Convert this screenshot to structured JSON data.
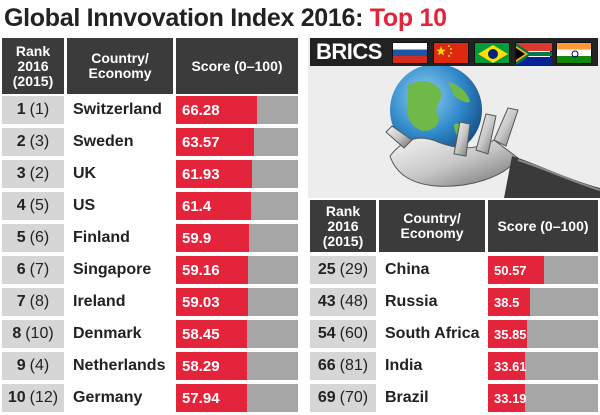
{
  "title": {
    "main": "Global Innvovation Index 2016: ",
    "accent": "Top 10"
  },
  "headers": {
    "rank_line1": "Rank",
    "rank_line2": "2016",
    "rank_line3": "(2015)",
    "country_line1": "Country/",
    "country_line2": "Economy",
    "score": "Score (0–100)"
  },
  "brics": {
    "label": "BRICS",
    "flags": [
      "russia-flag-icon",
      "china-flag-icon",
      "brazil-flag-icon",
      "south-africa-flag-icon",
      "india-flag-icon"
    ],
    "image": "robot-hand-holding-globe-icon"
  },
  "colors": {
    "accent": "#e3243b",
    "header": "#3b3b3b",
    "track": "#a6a6a6",
    "rank_bg": "#d6d6d6"
  },
  "chart_data": [
    {
      "type": "bar",
      "title": "Global Innvovation Index 2016: Top 10",
      "ylim": [
        0,
        100
      ],
      "categories": [
        "Switzerland",
        "Sweden",
        "UK",
        "US",
        "Finland",
        "Singapore",
        "Ireland",
        "Denmark",
        "Netherlands",
        "Germany"
      ],
      "rank_2016": [
        "1",
        "2",
        "3",
        "4",
        "5",
        "6",
        "7",
        "8",
        "9",
        "10"
      ],
      "rank_2015": [
        "(1)",
        "(3)",
        "(2)",
        "(5)",
        "(6)",
        "(7)",
        "(8)",
        "(10)",
        "(4)",
        "(12)"
      ],
      "values": [
        66.28,
        63.57,
        61.93,
        61.4,
        59.9,
        59.16,
        59.03,
        58.45,
        58.29,
        57.94
      ],
      "labels": [
        "66.28",
        "63.57",
        "61.93",
        "61.4",
        "59.9",
        "59.16",
        "59.03",
        "58.45",
        "58.29",
        "57.94"
      ]
    },
    {
      "type": "bar",
      "title": "BRICS",
      "ylim": [
        0,
        100
      ],
      "categories": [
        "China",
        "Russia",
        "South Africa",
        "India",
        "Brazil"
      ],
      "rank_2016": [
        "25",
        "43",
        "54",
        "66",
        "69"
      ],
      "rank_2015": [
        "(29)",
        "(48)",
        "(60)",
        "(81)",
        "(70)"
      ],
      "values": [
        50.57,
        38.5,
        35.85,
        33.61,
        33.19
      ],
      "labels": [
        "50.57",
        "38.5",
        "35.85",
        "33.61",
        "33.19"
      ]
    }
  ]
}
